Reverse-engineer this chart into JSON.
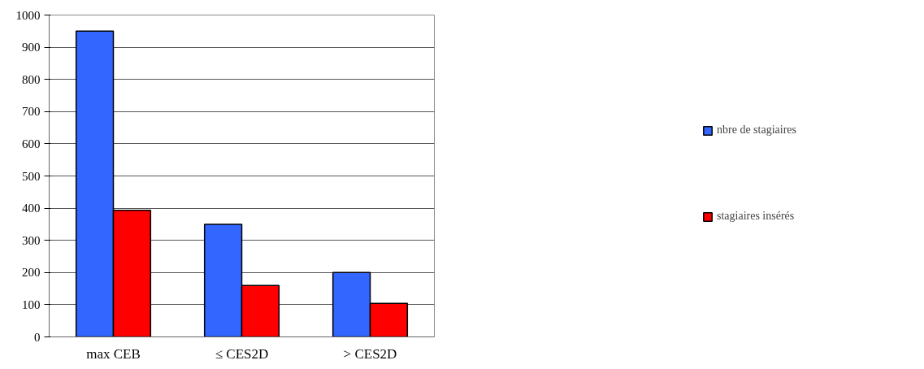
{
  "chart_data": {
    "type": "bar",
    "categories": [
      "max CEB",
      "≤ CES2D",
      "> CES2D"
    ],
    "series": [
      {
        "name": "nbre de stagiaires",
        "color": "#3366ff",
        "values": [
          950,
          350,
          200
        ]
      },
      {
        "name": "stagiaires insérés",
        "color": "#ff0000",
        "values": [
          393,
          160,
          104
        ]
      }
    ],
    "ylim": [
      0,
      1000
    ],
    "yticks": [
      0,
      100,
      200,
      300,
      400,
      500,
      600,
      700,
      800,
      900,
      1000
    ],
    "grid": "y",
    "legend": "right"
  }
}
